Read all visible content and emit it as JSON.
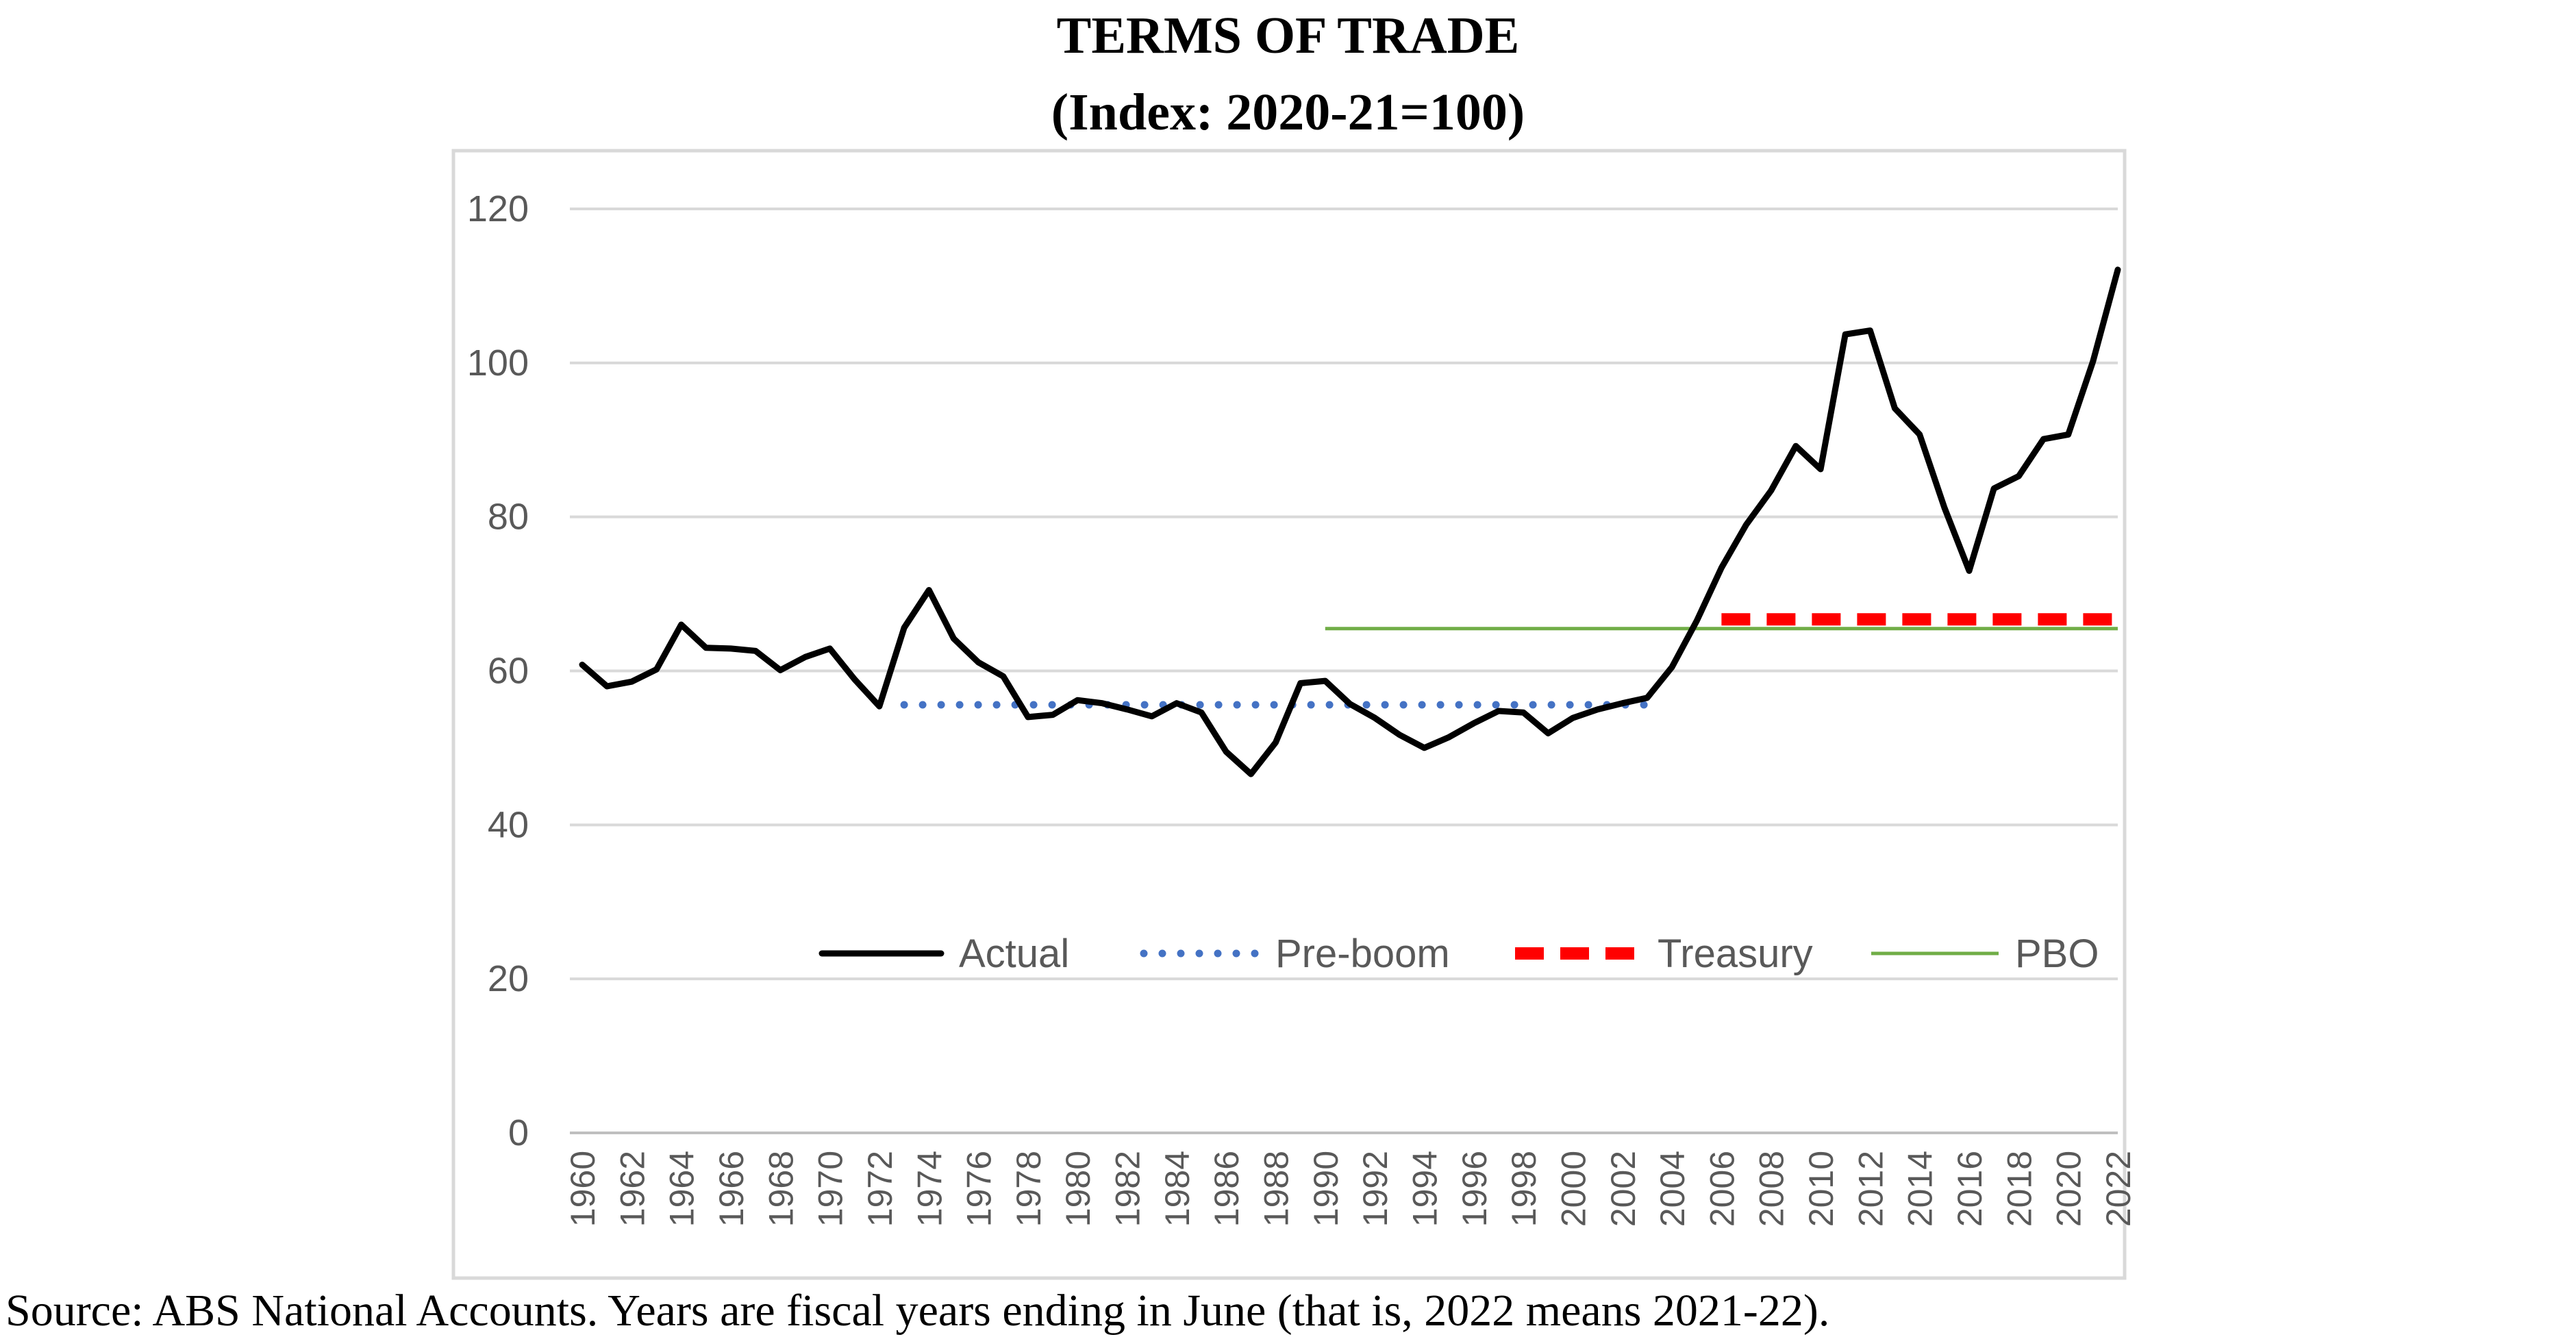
{
  "chart_data": {
    "type": "line",
    "title": "TERMS OF TRADE",
    "subtitle": "(Index: 2020-21=100)",
    "x": [
      1960,
      1961,
      1962,
      1963,
      1964,
      1965,
      1966,
      1967,
      1968,
      1969,
      1970,
      1971,
      1972,
      1973,
      1974,
      1975,
      1976,
      1977,
      1978,
      1979,
      1980,
      1981,
      1982,
      1983,
      1984,
      1985,
      1986,
      1987,
      1988,
      1989,
      1990,
      1991,
      1992,
      1993,
      1994,
      1995,
      1996,
      1997,
      1998,
      1999,
      2000,
      2001,
      2002,
      2003,
      2004,
      2005,
      2006,
      2007,
      2008,
      2009,
      2010,
      2011,
      2012,
      2013,
      2014,
      2015,
      2016,
      2017,
      2018,
      2019,
      2020,
      2021,
      2022
    ],
    "xticks": [
      "1960",
      "1962",
      "1964",
      "1966",
      "1968",
      "1970",
      "1972",
      "1974",
      "1976",
      "1978",
      "1980",
      "1982",
      "1984",
      "1986",
      "1988",
      "1990",
      "1992",
      "1994",
      "1996",
      "1998",
      "2000",
      "2002",
      "2004",
      "2006",
      "2008",
      "2010",
      "2012",
      "2014",
      "2016",
      "2018",
      "2020",
      "2022"
    ],
    "yticks": [
      "0",
      "20",
      "40",
      "60",
      "80",
      "100",
      "120"
    ],
    "ylim": [
      0,
      120
    ],
    "grid": true,
    "legend_position": "inside-lower-center",
    "series": [
      {
        "name": "Actual",
        "style": "solid-thick",
        "color": "#000000",
        "x": [
          1960,
          1961,
          1962,
          1963,
          1964,
          1965,
          1966,
          1967,
          1968,
          1969,
          1970,
          1971,
          1972,
          1973,
          1974,
          1975,
          1976,
          1977,
          1978,
          1979,
          1980,
          1981,
          1982,
          1983,
          1984,
          1985,
          1986,
          1987,
          1988,
          1989,
          1990,
          1991,
          1992,
          1993,
          1994,
          1995,
          1996,
          1997,
          1998,
          1999,
          2000,
          2001,
          2002,
          2003,
          2004,
          2005,
          2006,
          2007,
          2008,
          2009,
          2010,
          2011,
          2012,
          2013,
          2014,
          2015,
          2016,
          2017,
          2018,
          2019,
          2020,
          2021,
          2022
        ],
        "values": [
          60.8,
          58,
          58.6,
          60.2,
          66,
          63,
          62.9,
          62.6,
          60.1,
          61.8,
          62.9,
          58.9,
          55.4,
          65.6,
          70.5,
          64.2,
          61.1,
          59.3,
          54,
          54.3,
          56.2,
          55.8,
          55,
          54.1,
          55.8,
          54.6,
          49.5,
          46.6,
          50.7,
          58.4,
          58.7,
          55.7,
          53.9,
          51.7,
          50,
          51.4,
          53.2,
          54.8,
          54.6,
          51.9,
          53.9,
          55,
          55.8,
          56.5,
          60.5,
          66.5,
          73.4,
          79,
          83.4,
          89.2,
          86.2,
          103.7,
          104.2,
          94.1,
          90.7,
          81.2,
          73,
          83.7,
          85.3,
          90.1,
          90.7,
          100.2,
          112.1
        ]
      },
      {
        "name": "Pre-boom",
        "style": "dotted",
        "color": "#4472c4",
        "x": [
          1973,
          2003
        ],
        "values": [
          55.6,
          55.6
        ]
      },
      {
        "name": "Treasury",
        "style": "dashed-thick",
        "color": "#ff0000",
        "x": [
          2006,
          2022
        ],
        "values": [
          66.7,
          66.7
        ]
      },
      {
        "name": "PBO",
        "style": "solid-thin",
        "color": "#70ad47",
        "x": [
          1990,
          2022
        ],
        "values": [
          65.5,
          65.5
        ]
      }
    ]
  },
  "source_note": "Source: ABS National Accounts. Years are fiscal years ending in June (that is, 2022 means 2021-22)."
}
